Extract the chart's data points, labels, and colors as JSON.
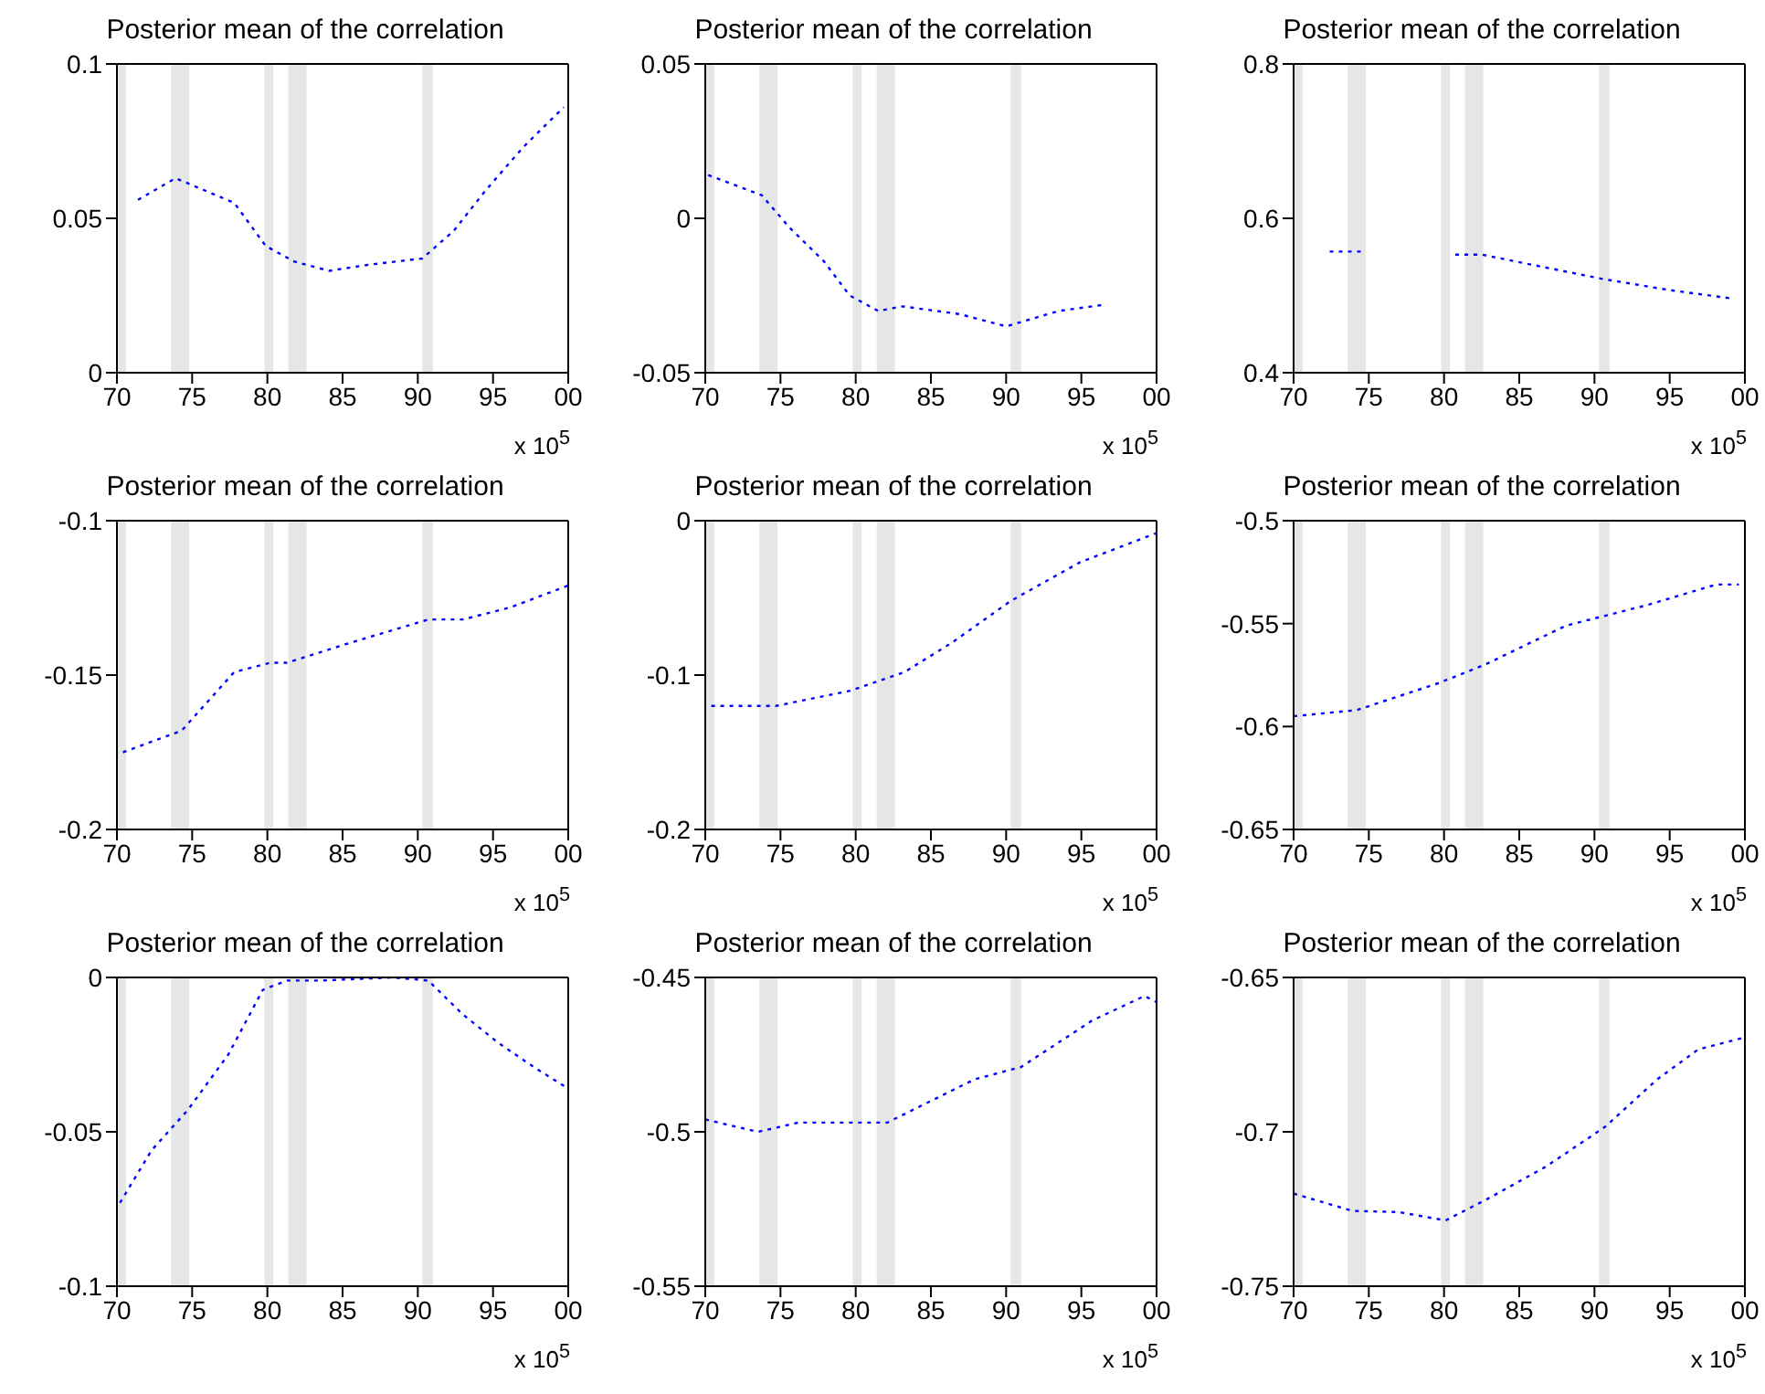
{
  "chart_data": [
    {
      "type": "line",
      "title": "Posterior mean of the correlation",
      "xlim": [
        1970,
        2000
      ],
      "xticks": [
        {
          "value": 1970,
          "label": "70"
        },
        {
          "value": 1975,
          "label": "75"
        },
        {
          "value": 1980,
          "label": "80"
        },
        {
          "value": 1985,
          "label": "85"
        },
        {
          "value": 1990,
          "label": "90"
        },
        {
          "value": 1995,
          "label": "95"
        },
        {
          "value": 2000,
          "label": "00"
        }
      ],
      "ylim": [
        0,
        0.1
      ],
      "yticks": [
        0,
        0.05,
        0.1
      ],
      "marker": "none",
      "line_style": "dotted",
      "annotations": [
        "x 10$^{5}$"
      ],
      "bands": [
        {
          "axis": "x",
          "from": 1970,
          "to": 1970.6,
          "color": "#e6e6e6"
        },
        {
          "axis": "x",
          "from": 1973.6,
          "to": 1974.8,
          "color": "#e6e6e6"
        },
        {
          "axis": "x",
          "from": 1979.8,
          "to": 1980.4,
          "color": "#e6e6e6"
        },
        {
          "axis": "x",
          "from": 1981.4,
          "to": 1982.6,
          "color": "#e6e6e6"
        },
        {
          "axis": "x",
          "from": 1990.3,
          "to": 1991,
          "color": "#e6e6e6"
        }
      ],
      "series": [
        {
          "color": "#0000ff",
          "x": [
            1971.4,
            1973.9,
            1977.8,
            1979.9,
            1981.8,
            1984.1,
            1986.8,
            1990.3,
            1992.4,
            1994.5,
            1997,
            1999.7
          ],
          "values": [
            0.056,
            0.063,
            0.055,
            0.041,
            0.036,
            0.033,
            0.035,
            0.037,
            0.046,
            0.059,
            0.073,
            0.086
          ]
        }
      ]
    },
    {
      "type": "line",
      "title": "Posterior mean of the correlation",
      "xlim": [
        1970,
        2000
      ],
      "xticks": [
        {
          "value": 1970,
          "label": "70"
        },
        {
          "value": 1975,
          "label": "75"
        },
        {
          "value": 1980,
          "label": "80"
        },
        {
          "value": 1985,
          "label": "85"
        },
        {
          "value": 1990,
          "label": "90"
        },
        {
          "value": 1995,
          "label": "95"
        },
        {
          "value": 2000,
          "label": "00"
        }
      ],
      "ylim": [
        -0.05,
        0.05
      ],
      "yticks": [
        -0.05,
        0,
        0.05
      ],
      "marker": "none",
      "line_style": "dotted",
      "annotations": [
        "x 10$^{5}$"
      ],
      "bands": [
        {
          "axis": "x",
          "from": 1970,
          "to": 1970.6,
          "color": "#e6e6e6"
        },
        {
          "axis": "x",
          "from": 1973.6,
          "to": 1974.8,
          "color": "#e6e6e6"
        },
        {
          "axis": "x",
          "from": 1979.8,
          "to": 1980.4,
          "color": "#e6e6e6"
        },
        {
          "axis": "x",
          "from": 1981.4,
          "to": 1982.6,
          "color": "#e6e6e6"
        },
        {
          "axis": "x",
          "from": 1990.3,
          "to": 1991,
          "color": "#e6e6e6"
        }
      ],
      "series": [
        {
          "color": "#0000ff",
          "x": [
            1970.2,
            1973.75,
            1975.6,
            1977.9,
            1979.6,
            1981.5,
            1983.1,
            1986.9,
            1990,
            1993.5,
            1996.5
          ],
          "values": [
            0.014,
            0.0075,
            -0.003,
            -0.014,
            -0.025,
            -0.03,
            -0.0285,
            -0.031,
            -0.035,
            -0.03,
            -0.028
          ]
        }
      ]
    },
    {
      "type": "line",
      "title": "Posterior mean of the correlation",
      "xlim": [
        1970,
        2000
      ],
      "xticks": [
        {
          "value": 1970,
          "label": "70"
        },
        {
          "value": 1975,
          "label": "75"
        },
        {
          "value": 1980,
          "label": "80"
        },
        {
          "value": 1985,
          "label": "85"
        },
        {
          "value": 1990,
          "label": "90"
        },
        {
          "value": 1995,
          "label": "95"
        },
        {
          "value": 2000,
          "label": "00"
        }
      ],
      "ylim": [
        0.4,
        0.8
      ],
      "yticks": [
        0.4,
        0.6,
        0.8
      ],
      "marker": "none",
      "line_style": "dotted",
      "annotations": [
        "x 10$^{5}$"
      ],
      "bands": [
        {
          "axis": "x",
          "from": 1970,
          "to": 1970.6,
          "color": "#e6e6e6"
        },
        {
          "axis": "x",
          "from": 1973.6,
          "to": 1974.8,
          "color": "#e6e6e6"
        },
        {
          "axis": "x",
          "from": 1979.8,
          "to": 1980.4,
          "color": "#e6e6e6"
        },
        {
          "axis": "x",
          "from": 1981.4,
          "to": 1982.6,
          "color": "#e6e6e6"
        },
        {
          "axis": "x",
          "from": 1990.3,
          "to": 1991,
          "color": "#e6e6e6"
        }
      ],
      "series": [
        {
          "color": "#0000ff",
          "x": [
            1972.4,
            1974.8,
            1977.5,
            1980.75,
            1982.5,
            1990.4,
            1995,
            1999.2
          ],
          "values": [
            0.557,
            0.557,
            null,
            0.553,
            0.553,
            0.522,
            0.507,
            0.496
          ]
        }
      ]
    },
    {
      "type": "line",
      "title": "Posterior mean of the correlation",
      "xlim": [
        1970,
        2000
      ],
      "xticks": [
        {
          "value": 1970,
          "label": "70"
        },
        {
          "value": 1975,
          "label": "75"
        },
        {
          "value": 1980,
          "label": "80"
        },
        {
          "value": 1985,
          "label": "85"
        },
        {
          "value": 1990,
          "label": "90"
        },
        {
          "value": 1995,
          "label": "95"
        },
        {
          "value": 2000,
          "label": "00"
        }
      ],
      "ylim": [
        -0.2,
        -0.1
      ],
      "yticks": [
        -0.2,
        -0.15,
        -0.1
      ],
      "marker": "none",
      "line_style": "dotted",
      "annotations": [
        "x 10$^{5}$"
      ],
      "bands": [
        {
          "axis": "x",
          "from": 1970,
          "to": 1970.6,
          "color": "#e6e6e6"
        },
        {
          "axis": "x",
          "from": 1973.6,
          "to": 1974.8,
          "color": "#e6e6e6"
        },
        {
          "axis": "x",
          "from": 1979.8,
          "to": 1980.4,
          "color": "#e6e6e6"
        },
        {
          "axis": "x",
          "from": 1981.4,
          "to": 1982.6,
          "color": "#e6e6e6"
        },
        {
          "axis": "x",
          "from": 1990.3,
          "to": 1991,
          "color": "#e6e6e6"
        }
      ],
      "series": [
        {
          "color": "#0000ff",
          "x": [
            1970.4,
            1974.3,
            1977.8,
            1980.2,
            1981.3,
            1985.2,
            1990.7,
            1993,
            1996.2,
            2000
          ],
          "values": [
            -0.175,
            -0.168,
            -0.149,
            -0.146,
            -0.146,
            -0.14,
            -0.132,
            -0.132,
            -0.128,
            -0.121
          ]
        }
      ]
    },
    {
      "type": "line",
      "title": "Posterior mean of the correlation",
      "xlim": [
        1970,
        2000
      ],
      "xticks": [
        {
          "value": 1970,
          "label": "70"
        },
        {
          "value": 1975,
          "label": "75"
        },
        {
          "value": 1980,
          "label": "80"
        },
        {
          "value": 1985,
          "label": "85"
        },
        {
          "value": 1990,
          "label": "90"
        },
        {
          "value": 1995,
          "label": "95"
        },
        {
          "value": 2000,
          "label": "00"
        }
      ],
      "ylim": [
        -0.2,
        0
      ],
      "yticks": [
        -0.2,
        -0.1,
        0
      ],
      "marker": "none",
      "line_style": "dotted",
      "annotations": [
        "x 10$^{5}$"
      ],
      "bands": [
        {
          "axis": "x",
          "from": 1970,
          "to": 1970.6,
          "color": "#e6e6e6"
        },
        {
          "axis": "x",
          "from": 1973.6,
          "to": 1974.8,
          "color": "#e6e6e6"
        },
        {
          "axis": "x",
          "from": 1979.8,
          "to": 1980.4,
          "color": "#e6e6e6"
        },
        {
          "axis": "x",
          "from": 1981.4,
          "to": 1982.6,
          "color": "#e6e6e6"
        },
        {
          "axis": "x",
          "from": 1990.3,
          "to": 1991,
          "color": "#e6e6e6"
        }
      ],
      "series": [
        {
          "color": "#0000ff",
          "x": [
            1970.4,
            1974.7,
            1979.7,
            1983.25,
            1986.4,
            1990.3,
            1994.9,
            2000
          ],
          "values": [
            -0.12,
            -0.12,
            -0.11,
            -0.098,
            -0.079,
            -0.052,
            -0.027,
            -0.008
          ]
        }
      ]
    },
    {
      "type": "line",
      "title": "Posterior mean of the correlation",
      "xlim": [
        1970,
        2000
      ],
      "xticks": [
        {
          "value": 1970,
          "label": "70"
        },
        {
          "value": 1975,
          "label": "75"
        },
        {
          "value": 1980,
          "label": "80"
        },
        {
          "value": 1985,
          "label": "85"
        },
        {
          "value": 1990,
          "label": "90"
        },
        {
          "value": 1995,
          "label": "95"
        },
        {
          "value": 2000,
          "label": "00"
        }
      ],
      "ylim": [
        -0.65,
        -0.5
      ],
      "yticks": [
        -0.65,
        -0.6,
        -0.55,
        -0.5
      ],
      "marker": "none",
      "line_style": "dotted",
      "annotations": [
        "x 10$^{5}$"
      ],
      "bands": [
        {
          "axis": "x",
          "from": 1970,
          "to": 1970.6,
          "color": "#e6e6e6"
        },
        {
          "axis": "x",
          "from": 1973.6,
          "to": 1974.8,
          "color": "#e6e6e6"
        },
        {
          "axis": "x",
          "from": 1979.8,
          "to": 1980.4,
          "color": "#e6e6e6"
        },
        {
          "axis": "x",
          "from": 1981.4,
          "to": 1982.6,
          "color": "#e6e6e6"
        },
        {
          "axis": "x",
          "from": 1990.3,
          "to": 1991,
          "color": "#e6e6e6"
        }
      ],
      "series": [
        {
          "color": "#0000ff",
          "x": [
            1970,
            1974.2,
            1979.6,
            1982.7,
            1988.1,
            1993.5,
            1998.1,
            1999.6
          ],
          "values": [
            -0.595,
            -0.592,
            -0.579,
            -0.57,
            -0.551,
            -0.541,
            -0.531,
            -0.531
          ]
        }
      ]
    },
    {
      "type": "line",
      "title": "Posterior mean of the correlation",
      "xlim": [
        1970,
        2000
      ],
      "xticks": [
        {
          "value": 1970,
          "label": "70"
        },
        {
          "value": 1975,
          "label": "75"
        },
        {
          "value": 1980,
          "label": "80"
        },
        {
          "value": 1985,
          "label": "85"
        },
        {
          "value": 1990,
          "label": "90"
        },
        {
          "value": 1995,
          "label": "95"
        },
        {
          "value": 2000,
          "label": "00"
        }
      ],
      "ylim": [
        -0.1,
        0
      ],
      "yticks": [
        -0.1,
        -0.05,
        0
      ],
      "marker": "none",
      "line_style": "dotted",
      "annotations": [
        "x 10$^{5}$"
      ],
      "bands": [
        {
          "axis": "x",
          "from": 1970,
          "to": 1970.6,
          "color": "#e6e6e6"
        },
        {
          "axis": "x",
          "from": 1973.6,
          "to": 1974.8,
          "color": "#e6e6e6"
        },
        {
          "axis": "x",
          "from": 1979.8,
          "to": 1980.4,
          "color": "#e6e6e6"
        },
        {
          "axis": "x",
          "from": 1981.4,
          "to": 1982.6,
          "color": "#e6e6e6"
        },
        {
          "axis": "x",
          "from": 1990.3,
          "to": 1991,
          "color": "#e6e6e6"
        }
      ],
      "series": [
        {
          "color": "#0000ff",
          "x": [
            1970.2,
            1972.3,
            1974.7,
            1977.4,
            1979.7,
            1981.3,
            1983.6,
            1988.3,
            1990.7,
            1993,
            1995.3,
            1997.7,
            2000
          ],
          "values": [
            -0.073,
            -0.056,
            -0.043,
            -0.025,
            -0.004,
            -0.001,
            -0.001,
            0,
            -0.001,
            -0.012,
            -0.021,
            -0.029,
            -0.036
          ]
        }
      ]
    },
    {
      "type": "line",
      "title": "Posterior mean of the correlation",
      "xlim": [
        1970,
        2000
      ],
      "xticks": [
        {
          "value": 1970,
          "label": "70"
        },
        {
          "value": 1975,
          "label": "75"
        },
        {
          "value": 1980,
          "label": "80"
        },
        {
          "value": 1985,
          "label": "85"
        },
        {
          "value": 1990,
          "label": "90"
        },
        {
          "value": 1995,
          "label": "95"
        },
        {
          "value": 2000,
          "label": "00"
        }
      ],
      "ylim": [
        -0.55,
        -0.45
      ],
      "yticks": [
        -0.55,
        -0.5,
        -0.45
      ],
      "marker": "none",
      "line_style": "dotted",
      "annotations": [
        "x 10$^{5}$"
      ],
      "bands": [
        {
          "axis": "x",
          "from": 1970,
          "to": 1970.6,
          "color": "#e6e6e6"
        },
        {
          "axis": "x",
          "from": 1973.6,
          "to": 1974.8,
          "color": "#e6e6e6"
        },
        {
          "axis": "x",
          "from": 1979.8,
          "to": 1980.4,
          "color": "#e6e6e6"
        },
        {
          "axis": "x",
          "from": 1981.4,
          "to": 1982.6,
          "color": "#e6e6e6"
        },
        {
          "axis": "x",
          "from": 1990.3,
          "to": 1991,
          "color": "#e6e6e6"
        }
      ],
      "series": [
        {
          "color": "#0000ff",
          "x": [
            1970,
            1973.5,
            1976.2,
            1982.1,
            1987.9,
            1991,
            1995.7,
            1999.2,
            2000
          ],
          "values": [
            -0.496,
            -0.5,
            -0.497,
            -0.497,
            -0.483,
            -0.479,
            -0.464,
            -0.456,
            -0.458
          ]
        }
      ]
    },
    {
      "type": "line",
      "title": "Posterior mean of the correlation",
      "xlim": [
        1970,
        2000
      ],
      "xticks": [
        {
          "value": 1970,
          "label": "70"
        },
        {
          "value": 1975,
          "label": "75"
        },
        {
          "value": 1980,
          "label": "80"
        },
        {
          "value": 1985,
          "label": "85"
        },
        {
          "value": 1990,
          "label": "90"
        },
        {
          "value": 1995,
          "label": "95"
        },
        {
          "value": 2000,
          "label": "00"
        }
      ],
      "ylim": [
        -0.75,
        -0.65
      ],
      "yticks": [
        -0.75,
        -0.7,
        -0.65
      ],
      "marker": "none",
      "line_style": "dotted",
      "annotations": [
        "x 10$^{5}$"
      ],
      "bands": [
        {
          "axis": "x",
          "from": 1970,
          "to": 1970.6,
          "color": "#e6e6e6"
        },
        {
          "axis": "x",
          "from": 1973.6,
          "to": 1974.8,
          "color": "#e6e6e6"
        },
        {
          "axis": "x",
          "from": 1979.8,
          "to": 1980.4,
          "color": "#e6e6e6"
        },
        {
          "axis": "x",
          "from": 1981.4,
          "to": 1982.6,
          "color": "#e6e6e6"
        },
        {
          "axis": "x",
          "from": 1990.3,
          "to": 1991,
          "color": "#e6e6e6"
        }
      ],
      "series": [
        {
          "color": "#0000ff",
          "x": [
            1970,
            1973.9,
            1977,
            1980.1,
            1982.9,
            1986.8,
            1990.7,
            1994.2,
            1996.9,
            2000
          ],
          "values": [
            -0.72,
            -0.7256,
            -0.726,
            -0.7287,
            -0.7217,
            -0.7112,
            -0.6984,
            -0.6829,
            -0.6733,
            -0.6694
          ]
        }
      ]
    }
  ]
}
